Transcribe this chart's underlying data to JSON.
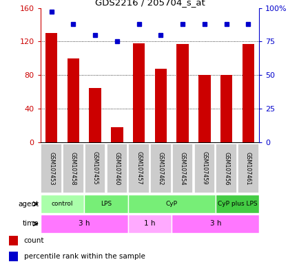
{
  "title": "GDS2216 / 205704_s_at",
  "samples": [
    "GSM107453",
    "GSM107458",
    "GSM107455",
    "GSM107460",
    "GSM107457",
    "GSM107462",
    "GSM107454",
    "GSM107459",
    "GSM107456",
    "GSM107461"
  ],
  "counts": [
    130,
    100,
    65,
    18,
    118,
    88,
    117,
    80,
    80,
    117
  ],
  "percentiles": [
    97,
    88,
    80,
    75,
    88,
    80,
    88,
    88,
    88,
    88
  ],
  "bar_color": "#cc0000",
  "dot_color": "#0000cc",
  "left_ylim": [
    0,
    160
  ],
  "left_yticks": [
    0,
    40,
    80,
    120,
    160
  ],
  "right_ylim": [
    0,
    100
  ],
  "right_yticks": [
    0,
    25,
    50,
    75,
    100
  ],
  "right_yticklabels": [
    "0",
    "25",
    "50",
    "75",
    "100%"
  ],
  "agent_groups": [
    {
      "label": "control",
      "start": 0,
      "end": 2,
      "color": "#aaffaa"
    },
    {
      "label": "LPS",
      "start": 2,
      "end": 4,
      "color": "#77ee77"
    },
    {
      "label": "CyP",
      "start": 4,
      "end": 8,
      "color": "#77ee77"
    },
    {
      "label": "CyP plus LPS",
      "start": 8,
      "end": 10,
      "color": "#44cc44"
    }
  ],
  "time_groups": [
    {
      "label": "3 h",
      "start": 0,
      "end": 4,
      "color": "#ff77ff"
    },
    {
      "label": "1 h",
      "start": 4,
      "end": 6,
      "color": "#ffaaff"
    },
    {
      "label": "3 h",
      "start": 6,
      "end": 10,
      "color": "#ff77ff"
    }
  ],
  "legend_items": [
    {
      "color": "#cc0000",
      "marker": "s",
      "label": "count"
    },
    {
      "color": "#0000cc",
      "marker": "s",
      "label": "percentile rank within the sample"
    }
  ],
  "bg_color": "#ffffff",
  "sample_bg": "#cccccc"
}
